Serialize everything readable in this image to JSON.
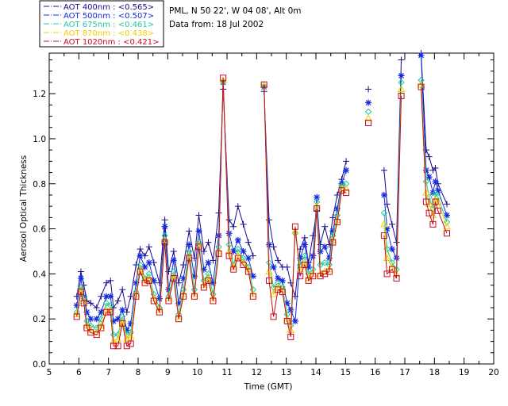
{
  "chart_data": {
    "type": "line",
    "title": "PML, N 50 22', W 04 08', Alt 0m",
    "subtitle": "Data from: 18 Jul 2002",
    "xlabel": "Time (GMT)",
    "ylabel": "Aerosol Optical Thickness",
    "xlim": [
      5,
      20
    ],
    "ylim": [
      0.0,
      1.38
    ],
    "xticks": [
      "5",
      "6",
      "7",
      "8",
      "9",
      "10",
      "11",
      "12",
      "13",
      "14",
      "15",
      "16",
      "17",
      "18",
      "19",
      "20"
    ],
    "yticks": [
      "0.0",
      "0.2",
      "0.4",
      "0.6",
      "0.8",
      "1.0",
      "1.2"
    ],
    "x": [
      5.93,
      6.07,
      6.17,
      6.27,
      6.4,
      6.6,
      6.75,
      6.93,
      7.07,
      7.17,
      7.32,
      7.47,
      7.62,
      7.75,
      7.93,
      8.07,
      8.23,
      8.37,
      8.53,
      8.72,
      8.9,
      9.03,
      9.2,
      9.37,
      9.53,
      9.72,
      9.9,
      10.05,
      10.22,
      10.37,
      10.53,
      10.72,
      10.87,
      11.07,
      11.22,
      11.37,
      11.55,
      11.72,
      11.88,
      12.25,
      12.42,
      12.57,
      12.72,
      12.87,
      13.03,
      13.15,
      13.3,
      13.47,
      13.62,
      13.75,
      13.9,
      14.03,
      14.15,
      14.3,
      14.45,
      14.57,
      14.72,
      14.87,
      15.02,
      15.77,
      16.3,
      16.4,
      16.57,
      16.72,
      16.88,
      17.55,
      17.72,
      17.82,
      17.95,
      18.03,
      18.12,
      18.42
    ],
    "gaps": [
      [
        12.0,
        12.2
      ],
      [
        15.1,
        16.25
      ],
      [
        16.95,
        17.5
      ]
    ],
    "series": [
      {
        "name": "AOT  400nm",
        "mean": "<0.565>",
        "color": "#1a0a8c",
        "marker": "plus",
        "values": [
          0.3,
          0.41,
          0.35,
          0.28,
          0.27,
          0.25,
          0.3,
          0.36,
          0.37,
          0.25,
          0.28,
          0.33,
          0.23,
          0.3,
          0.44,
          0.51,
          0.48,
          0.52,
          0.45,
          0.36,
          0.64,
          0.41,
          0.5,
          0.36,
          0.44,
          0.59,
          0.47,
          0.66,
          0.5,
          0.54,
          0.46,
          0.67,
          1.22,
          0.64,
          0.61,
          0.7,
          0.62,
          0.54,
          0.48,
          1.21,
          0.64,
          0.52,
          0.46,
          0.43,
          0.43,
          0.36,
          0.3,
          0.51,
          0.56,
          0.45,
          0.57,
          0.68,
          0.53,
          0.61,
          0.53,
          0.65,
          0.75,
          0.82,
          0.9,
          1.22,
          0.86,
          0.71,
          0.62,
          0.54,
          1.35,
          1.38,
          0.95,
          0.92,
          0.86,
          0.87,
          0.8,
          0.71
        ]
      },
      {
        "name": "AOT  500nm",
        "mean": "<0.507>",
        "color": "#1428e0",
        "marker": "star",
        "values": [
          0.26,
          0.38,
          0.3,
          0.23,
          0.2,
          0.2,
          0.23,
          0.3,
          0.3,
          0.19,
          0.2,
          0.24,
          0.15,
          0.18,
          0.36,
          0.48,
          0.43,
          0.45,
          0.37,
          0.29,
          0.61,
          0.33,
          0.46,
          0.27,
          0.38,
          0.53,
          0.39,
          0.59,
          0.42,
          0.45,
          0.36,
          0.57,
          1.25,
          0.58,
          0.5,
          0.55,
          0.5,
          0.47,
          0.39,
          1.23,
          0.53,
          0.43,
          0.38,
          0.37,
          0.27,
          0.24,
          0.19,
          0.47,
          0.53,
          0.43,
          0.48,
          0.74,
          0.5,
          0.52,
          0.47,
          0.59,
          0.69,
          0.8,
          0.86,
          1.16,
          0.75,
          0.6,
          0.51,
          0.47,
          1.28,
          1.37,
          0.86,
          0.83,
          0.76,
          0.81,
          0.77,
          0.66
        ]
      },
      {
        "name": "AOT  675nm",
        "mean": "<0.461>",
        "color": "#20c8a0",
        "marker": "diamond",
        "values": [
          0.23,
          0.34,
          0.29,
          0.19,
          0.17,
          0.16,
          0.2,
          0.27,
          0.26,
          0.13,
          0.13,
          0.21,
          0.13,
          0.14,
          0.32,
          0.44,
          0.38,
          0.4,
          0.31,
          0.25,
          0.57,
          0.3,
          0.41,
          0.22,
          0.33,
          0.5,
          0.33,
          0.54,
          0.37,
          0.4,
          0.31,
          0.52,
          1.25,
          0.53,
          0.44,
          0.51,
          0.47,
          0.43,
          0.33,
          1.23,
          0.45,
          0.34,
          0.36,
          0.34,
          0.22,
          0.17,
          0.58,
          0.44,
          0.48,
          0.4,
          0.42,
          0.72,
          0.44,
          0.45,
          0.44,
          0.57,
          0.66,
          0.79,
          0.8,
          1.12,
          0.67,
          0.51,
          0.45,
          0.42,
          1.25,
          1.26,
          0.81,
          0.74,
          0.69,
          0.76,
          0.74,
          0.63
        ]
      },
      {
        "name": "AOT  870nm",
        "mean": "<0.438>",
        "color": "#f0d000",
        "marker": "triangle",
        "values": [
          0.22,
          0.33,
          0.28,
          0.17,
          0.15,
          0.14,
          0.17,
          0.24,
          0.24,
          0.1,
          0.11,
          0.19,
          0.11,
          0.12,
          0.31,
          0.42,
          0.37,
          0.38,
          0.29,
          0.24,
          0.55,
          0.29,
          0.39,
          0.21,
          0.31,
          0.48,
          0.31,
          0.53,
          0.35,
          0.38,
          0.29,
          0.5,
          1.26,
          0.5,
          0.43,
          0.48,
          0.45,
          0.42,
          0.31,
          1.24,
          0.41,
          0.31,
          0.34,
          0.33,
          0.2,
          0.15,
          0.59,
          0.42,
          0.45,
          0.38,
          0.4,
          0.7,
          0.4,
          0.41,
          0.42,
          0.55,
          0.64,
          0.78,
          0.78,
          1.09,
          0.62,
          0.47,
          0.43,
          0.4,
          1.22,
          1.24,
          0.76,
          0.71,
          0.66,
          0.73,
          0.72,
          0.61
        ]
      },
      {
        "name": "AOT  1020nm",
        "mean": "<0.421>",
        "color": "#c80a1e",
        "marker": "square",
        "values": [
          0.21,
          0.32,
          0.27,
          0.16,
          0.14,
          0.13,
          0.16,
          0.23,
          0.23,
          0.08,
          0.08,
          0.18,
          0.08,
          0.09,
          0.3,
          0.41,
          0.36,
          0.37,
          0.28,
          0.23,
          0.54,
          0.28,
          0.38,
          0.2,
          0.3,
          0.47,
          0.3,
          0.52,
          0.34,
          0.37,
          0.28,
          0.49,
          1.27,
          0.48,
          0.42,
          0.47,
          0.44,
          0.41,
          0.3,
          1.24,
          0.37,
          0.21,
          0.33,
          0.32,
          0.19,
          0.12,
          0.61,
          0.39,
          0.44,
          0.37,
          0.39,
          0.69,
          0.39,
          0.4,
          0.41,
          0.54,
          0.63,
          0.77,
          0.76,
          1.07,
          0.57,
          0.4,
          0.42,
          0.38,
          1.19,
          1.23,
          0.72,
          0.67,
          0.62,
          0.72,
          0.68,
          0.58
        ]
      }
    ]
  }
}
